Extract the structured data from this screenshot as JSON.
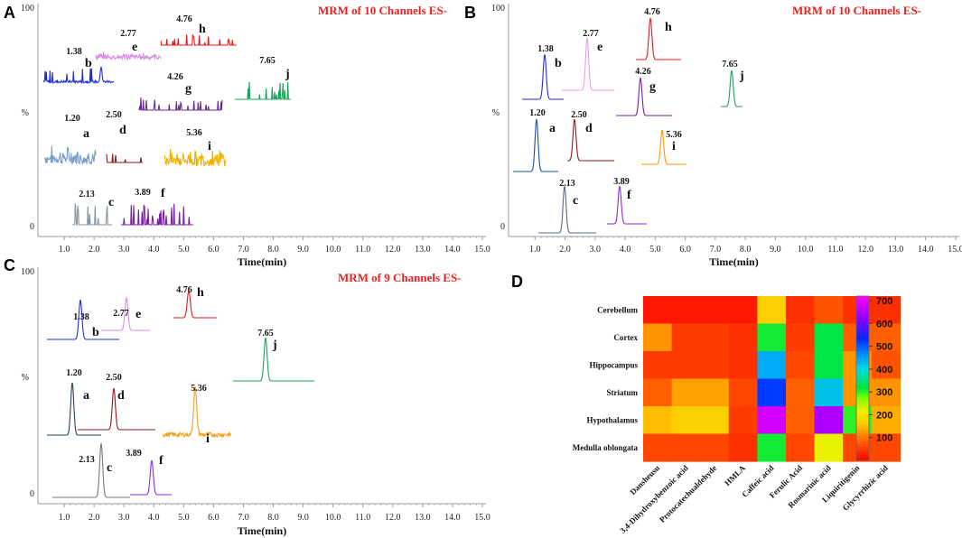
{
  "chart_data": [
    {
      "type": "line",
      "panel": "A",
      "title": "MRM of 10 Channels ES-",
      "xlabel": "Time(min)",
      "ylabel": "%",
      "xlim": [
        0.0,
        15.0
      ],
      "xticks": [
        "1.0",
        "2.0",
        "3.0",
        "4.0",
        "5.0",
        "6.0",
        "7.0",
        "8.0",
        "9.0",
        "10.0",
        "11.0",
        "12.0",
        "13.0",
        "14.0",
        "15.0"
      ],
      "ytick_top": "100",
      "ytick_bottom": "0",
      "traces": [
        {
          "letter": "a",
          "rt": "1.20",
          "color": "#7a9cc6"
        },
        {
          "letter": "b",
          "rt": "1.38",
          "color": "#1f2fd6"
        },
        {
          "letter": "c",
          "rt": "2.13",
          "color": "#8296a8"
        },
        {
          "letter": "d",
          "rt": "2.50",
          "color": "#8b1a1a"
        },
        {
          "letter": "e",
          "rt": "2.77",
          "color": "#d68ee0"
        },
        {
          "letter": "f",
          "rt": "3.89",
          "color": "#7b1fa2"
        },
        {
          "letter": "g",
          "rt": "4.26",
          "color": "#6a2c91"
        },
        {
          "letter": "h",
          "rt": "4.76",
          "color": "#e31a1c"
        },
        {
          "letter": "i",
          "rt": "5.36",
          "color": "#f0b000"
        },
        {
          "letter": "j",
          "rt": "7.65",
          "color": "#1aa35a"
        }
      ]
    },
    {
      "type": "line",
      "panel": "B",
      "title": "MRM of 10 Channels ES-",
      "xlabel": "Time(min)",
      "ylabel": "%",
      "xlim": [
        0.0,
        15.0
      ],
      "xticks": [
        "1.0",
        "2.0",
        "3.0",
        "4.0",
        "5.0",
        "6.0",
        "7.0",
        "8.0",
        "9.0",
        "10.0",
        "11.0",
        "12.0",
        "13.0",
        "14.0",
        "15.0"
      ],
      "ytick_top": "100",
      "ytick_bottom": "0",
      "traces": [
        {
          "letter": "a",
          "rt": "1.20",
          "color": "#1f4e99"
        },
        {
          "letter": "b",
          "rt": "1.38",
          "color": "#1f2fd6"
        },
        {
          "letter": "c",
          "rt": "2.13",
          "color": "#5a6a8a"
        },
        {
          "letter": "d",
          "rt": "2.50",
          "color": "#8b1a1a"
        },
        {
          "letter": "e",
          "rt": "2.77",
          "color": "#e0a0e8"
        },
        {
          "letter": "f",
          "rt": "3.89",
          "color": "#8a2be2"
        },
        {
          "letter": "g",
          "rt": "4.26",
          "color": "#7b1fa2"
        },
        {
          "letter": "h",
          "rt": "4.76",
          "color": "#e31a1c"
        },
        {
          "letter": "i",
          "rt": "5.36",
          "color": "#ff9900"
        },
        {
          "letter": "j",
          "rt": "7.65",
          "color": "#1aa35a"
        }
      ]
    },
    {
      "type": "line",
      "panel": "C",
      "title": "MRM of 9 Channels ES-",
      "xlabel": "Time(min)",
      "ylabel": "%",
      "xlim": [
        0.0,
        15.0
      ],
      "xticks": [
        "1.0",
        "2.0",
        "3.0",
        "4.0",
        "5.0",
        "6.0",
        "7.0",
        "8.0",
        "9.0",
        "10.0",
        "11.0",
        "12.0",
        "13.0",
        "14.0",
        "15.0"
      ],
      "ytick_top": "100",
      "ytick_bottom": "0",
      "traces": [
        {
          "letter": "a",
          "rt": "1.20",
          "color": "#2c3e66"
        },
        {
          "letter": "b",
          "rt": "1.38",
          "color": "#1f2fd6"
        },
        {
          "letter": "c",
          "rt": "2.13",
          "color": "#777777"
        },
        {
          "letter": "d",
          "rt": "2.50",
          "color": "#8b1a1a"
        },
        {
          "letter": "e",
          "rt": "2.77",
          "color": "#d68ee0"
        },
        {
          "letter": "f",
          "rt": "3.89",
          "color": "#8a2be2"
        },
        {
          "letter": "h",
          "rt": "4.76",
          "color": "#e31a1c"
        },
        {
          "letter": "i",
          "rt": "5.36",
          "color": "#f0a020"
        },
        {
          "letter": "j",
          "rt": "7.65",
          "color": "#1aa35a"
        }
      ]
    },
    {
      "type": "heatmap",
      "panel": "D",
      "rows": [
        "Cerebellum",
        "Cortex",
        "Hippocampus",
        "Striatum",
        "Hypothalamus",
        "Medulla oblongata"
      ],
      "columns": [
        "Dansheusu",
        "3,4-Dihydroxybenzoic acid",
        "Protocatechualdehyde",
        "HMLA",
        "Caffeic acid",
        "Ferulic Acid",
        "Rosmarinic acid",
        "Liquiritigenin",
        "Glycyrrhizic acid"
      ],
      "values": [
        [
          20,
          20,
          20,
          20,
          170,
          40,
          70,
          40,
          40
        ],
        [
          120,
          50,
          50,
          40,
          310,
          50,
          320,
          80,
          80
        ],
        [
          50,
          50,
          50,
          40,
          440,
          60,
          320,
          120,
          70
        ],
        [
          80,
          130,
          130,
          60,
          520,
          80,
          420,
          120,
          120
        ],
        [
          150,
          170,
          170,
          50,
          680,
          80,
          650,
          300,
          140
        ],
        [
          60,
          60,
          60,
          40,
          310,
          60,
          220,
          60,
          60
        ]
      ],
      "colorbar_ticks": [
        "700",
        "600",
        "500",
        "400",
        "300",
        "200",
        "100"
      ],
      "vmin": 0,
      "vmax": 720
    }
  ]
}
